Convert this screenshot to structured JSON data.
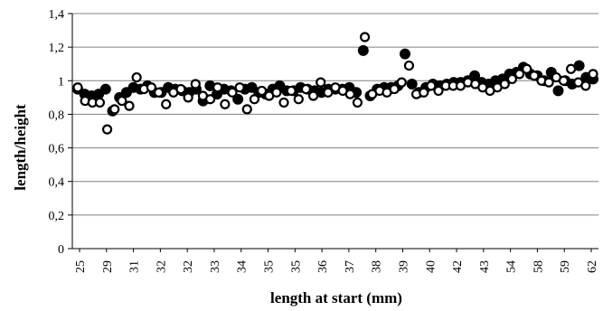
{
  "chart_data": {
    "type": "scatter",
    "title": "",
    "xlabel": "length at start (mm)",
    "ylabel": "length/height",
    "ylim": [
      0,
      1.4
    ],
    "yticks": [
      "0",
      "0,2",
      "0,4",
      "0,6",
      "0,8",
      "1",
      "1,2",
      "1,4"
    ],
    "x_tick_labels": [
      "25",
      "29",
      "31",
      "32",
      "32",
      "33",
      "34",
      "35",
      "35",
      "36",
      "37",
      "38",
      "39",
      "40",
      "42",
      "43",
      "54",
      "58",
      "59",
      "62"
    ],
    "grid": "horizontal",
    "legend": "none",
    "series": [
      {
        "marker": "filled-circle",
        "color": "#000000",
        "values": [
          0.95,
          0.92,
          0.91,
          0.92,
          0.95,
          0.82,
          0.9,
          0.93,
          0.96,
          0.95,
          0.97,
          0.93,
          0.93,
          0.96,
          0.95,
          0.94,
          0.93,
          0.95,
          0.88,
          0.97,
          0.92,
          0.95,
          0.94,
          0.89,
          0.95,
          0.96,
          0.93,
          0.92,
          0.95,
          0.97,
          0.94,
          0.94,
          0.96,
          0.95,
          0.94,
          0.93,
          0.95,
          0.95,
          0.95,
          0.96,
          0.93,
          1.18,
          0.91,
          0.95,
          0.96,
          0.96,
          0.97,
          1.16,
          0.98,
          0.93,
          0.96,
          0.98,
          0.97,
          0.98,
          0.99,
          0.99,
          1.0,
          1.03,
          0.99,
          0.98,
          1.0,
          1.01,
          1.04,
          1.05,
          1.08,
          1.04,
          1.03,
          1.0,
          1.05,
          0.94,
          1.0,
          0.98,
          1.09,
          1.02,
          1.01
        ]
      },
      {
        "marker": "open-circle",
        "color": "#000000",
        "values": [
          0.96,
          0.88,
          0.87,
          0.87,
          0.71,
          0.83,
          0.88,
          0.85,
          1.02,
          0.95,
          0.96,
          0.93,
          0.86,
          0.93,
          0.95,
          0.9,
          0.98,
          0.91,
          0.89,
          0.96,
          0.86,
          0.93,
          0.96,
          0.83,
          0.89,
          0.94,
          0.91,
          0.93,
          0.87,
          0.94,
          0.89,
          0.95,
          0.91,
          0.99,
          0.93,
          0.96,
          0.94,
          0.92,
          0.87,
          1.26,
          0.92,
          0.94,
          0.93,
          0.95,
          0.99,
          1.09,
          0.92,
          0.93,
          0.97,
          0.94,
          0.97,
          0.97,
          0.97,
          0.99,
          0.98,
          0.96,
          0.94,
          0.96,
          0.98,
          1.01,
          1.04,
          1.07,
          1.03,
          1.0,
          0.99,
          1.02,
          1.0,
          1.07,
          0.99,
          0.97,
          1.04
        ]
      }
    ]
  }
}
